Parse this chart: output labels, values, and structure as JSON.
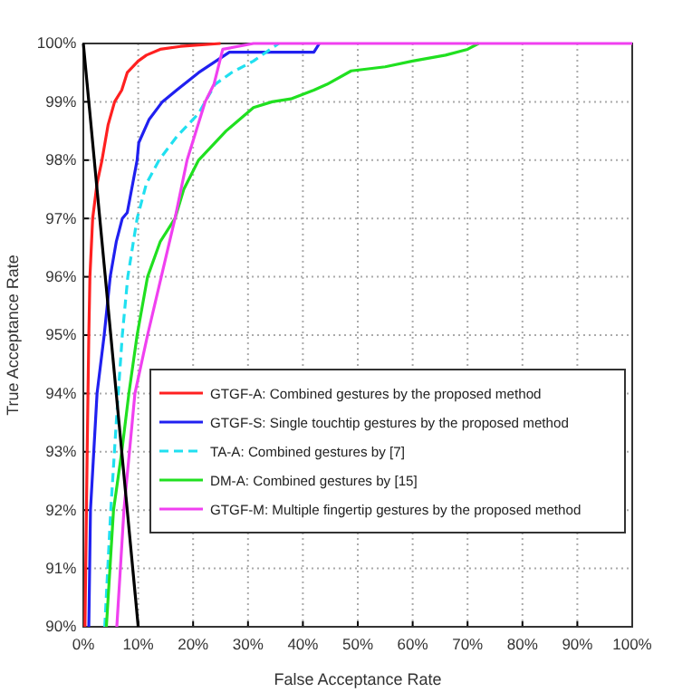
{
  "chart_data": {
    "type": "line",
    "xlabel": "False Acceptance Rate",
    "ylabel": "True Acceptance Rate",
    "xlim": [
      0,
      100
    ],
    "ylim": [
      90,
      100
    ],
    "xticks": [
      {
        "value": 0,
        "label": "0%"
      },
      {
        "value": 10,
        "label": "10%"
      },
      {
        "value": 20,
        "label": "20%"
      },
      {
        "value": 30,
        "label": "30%"
      },
      {
        "value": 40,
        "label": "40%"
      },
      {
        "value": 50,
        "label": "50%"
      },
      {
        "value": 60,
        "label": "60%"
      },
      {
        "value": 70,
        "label": "70%"
      },
      {
        "value": 80,
        "label": "80%"
      },
      {
        "value": 90,
        "label": "90%"
      },
      {
        "value": 100,
        "label": "100%"
      }
    ],
    "yticks": [
      {
        "value": 90,
        "label": "90%"
      },
      {
        "value": 91,
        "label": "91%"
      },
      {
        "value": 92,
        "label": "92%"
      },
      {
        "value": 93,
        "label": "93%"
      },
      {
        "value": 94,
        "label": "94%"
      },
      {
        "value": 95,
        "label": "95%"
      },
      {
        "value": 96,
        "label": "96%"
      },
      {
        "value": 97,
        "label": "97%"
      },
      {
        "value": 98,
        "label": "98%"
      },
      {
        "value": 99,
        "label": "99%"
      },
      {
        "value": 100,
        "label": "100%"
      }
    ],
    "grid": true,
    "legend": "bottom right",
    "marker": "none",
    "series": [
      {
        "name": "GTGF-A: Combined gestures by the proposed method",
        "color": "#ff2020",
        "x": [
          0.3,
          0.7,
          1,
          1.2,
          1.7,
          2.5,
          3.4,
          4.5,
          5.7,
          7,
          8,
          10,
          11.5,
          14,
          17.7,
          25
        ],
        "values": [
          90,
          93,
          95,
          96,
          97,
          97.6,
          98,
          98.6,
          99,
          99.2,
          99.5,
          99.7,
          99.8,
          99.9,
          99.95,
          100
        ]
      },
      {
        "name": "GTGF-S: Single touchtip gestures by the proposed method",
        "color": "#2020f0",
        "x": [
          1,
          1.3,
          2.5,
          3.8,
          4.9,
          6,
          7.1,
          8,
          9.8,
          10.1,
          12,
          14.4,
          17,
          21,
          26.6,
          35,
          42,
          43
        ],
        "values": [
          90,
          92,
          94,
          95,
          96,
          96.6,
          97,
          97.1,
          98,
          98.3,
          98.7,
          99,
          99.2,
          99.5,
          99.85,
          99.85,
          99.85,
          100
        ]
      },
      {
        "name": "TA-A: Combined gestures by [7]",
        "color": "#20e0f0",
        "line_style": "dashed",
        "x": [
          3.9,
          5,
          6,
          7.1,
          8.1,
          9.8,
          11.5,
          13.8,
          17,
          21,
          24,
          27,
          31,
          35.6
        ],
        "values": [
          90,
          92,
          93.5,
          95,
          96,
          97,
          97.6,
          98,
          98.4,
          98.8,
          99.3,
          99.5,
          99.7,
          100
        ]
      },
      {
        "name": "DM-A: Combined gestures by [15]",
        "color": "#20e020",
        "x": [
          4.2,
          5.5,
          7,
          8.3,
          9.8,
          11.7,
          14,
          16.7,
          18.3,
          21,
          26,
          31,
          34.4,
          37.8,
          42,
          44.4,
          48.8,
          55,
          60,
          66,
          70,
          72
        ],
        "values": [
          90,
          92,
          93,
          94,
          95,
          96,
          96.6,
          97,
          97.5,
          98,
          98.5,
          98.9,
          99,
          99.05,
          99.2,
          99.3,
          99.53,
          99.6,
          99.7,
          99.8,
          99.9,
          100
        ]
      },
      {
        "name": "GTGF-M: Multiple fingertip gestures by the proposed method",
        "color": "#f040f0",
        "x": [
          6.1,
          7.4,
          9.4,
          11.7,
          14.2,
          16.7,
          18.9,
          22.2,
          23.8,
          25.4,
          31,
          100
        ],
        "values": [
          90,
          92,
          94,
          95,
          96,
          97,
          98,
          99,
          99.3,
          99.9,
          100,
          100
        ]
      },
      {
        "color": "#000000",
        "x": [
          0,
          10
        ],
        "values": [
          100,
          90
        ]
      }
    ]
  }
}
